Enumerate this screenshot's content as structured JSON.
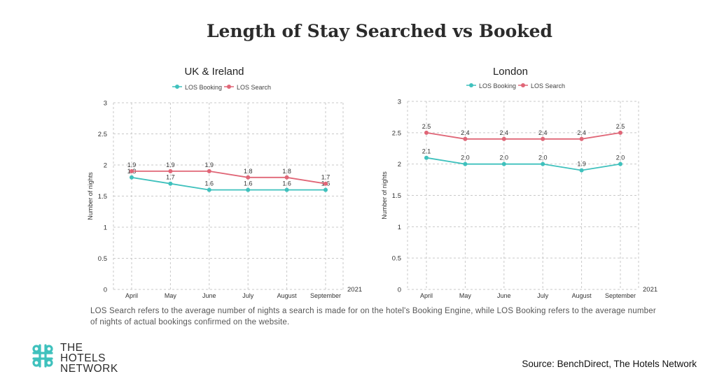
{
  "title": "Length of Stay Searched vs Booked",
  "chart_data": [
    {
      "type": "line",
      "title": "UK & Ireland",
      "categories": [
        "April",
        "May",
        "June",
        "July",
        "August",
        "September"
      ],
      "x_suffix": "2021",
      "ylabel": "Number of nights",
      "ylim": [
        0,
        3
      ],
      "yticks": [
        "0",
        "0.5",
        "1",
        "1.5",
        "2",
        "2.5",
        "3"
      ],
      "grid": true,
      "legend": "top-center",
      "series": [
        {
          "name": "LOS Booking",
          "color": "#3fc1bd",
          "values": [
            1.8,
            1.7,
            1.6,
            1.6,
            1.6,
            1.6
          ],
          "labels": [
            "1.8",
            "1.7",
            "1.6",
            "1.6",
            "1.6",
            "1.6"
          ]
        },
        {
          "name": "LOS Search",
          "color": "#e06677",
          "values": [
            1.9,
            1.9,
            1.9,
            1.8,
            1.8,
            1.7
          ],
          "labels": [
            "1.9",
            "1.9",
            "1.9",
            "1.8",
            "1.8",
            "1.7"
          ]
        }
      ]
    },
    {
      "type": "line",
      "title": "London",
      "categories": [
        "April",
        "May",
        "June",
        "July",
        "August",
        "September"
      ],
      "x_suffix": "2021",
      "ylabel": "Number of nights",
      "ylim": [
        0,
        3
      ],
      "yticks": [
        "0",
        "0.5",
        "1",
        "1.5",
        "2",
        "2.5",
        "3"
      ],
      "grid": true,
      "legend": "top-center",
      "series": [
        {
          "name": "LOS Booking",
          "color": "#3fc1bd",
          "values": [
            2.1,
            2.0,
            2.0,
            2.0,
            1.9,
            2.0
          ],
          "labels": [
            "2.1",
            "2.0",
            "2.0",
            "2.0",
            "1.9",
            "2.0"
          ]
        },
        {
          "name": "LOS Search",
          "color": "#e06677",
          "values": [
            2.5,
            2.4,
            2.4,
            2.4,
            2.4,
            2.5
          ],
          "labels": [
            "2.5",
            "2.4",
            "2.4",
            "2.4",
            "2.4",
            "2.5"
          ]
        }
      ]
    }
  ],
  "note": "LOS Search refers to the average number of nights a search is made for on the hotel's Booking Engine, while LOS Booking refers to the average number of nights of actual bookings confirmed on the website.",
  "logo": {
    "icon": "hotels-network-logo-icon",
    "lines": [
      "THE",
      "HOTELS",
      "NETWORK"
    ],
    "color": "#3fc1bd"
  },
  "source": "Source: BenchDirect, The Hotels Network"
}
